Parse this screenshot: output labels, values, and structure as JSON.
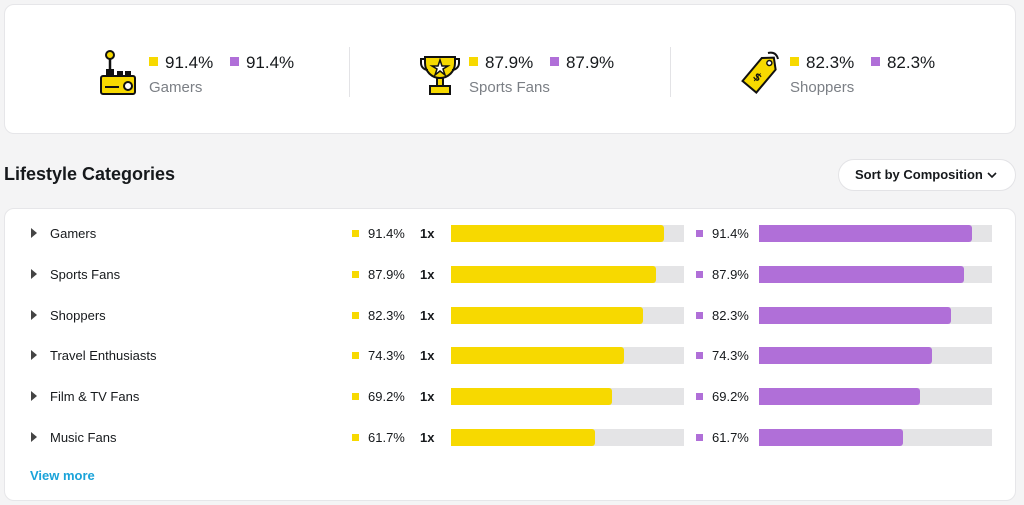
{
  "colors": {
    "primary": "#f7d900",
    "secondary": "#b06fd8",
    "link": "#1aa3d9"
  },
  "summary": [
    {
      "icon": "joystick-icon",
      "primary": "91.4%",
      "secondary": "91.4%",
      "label": "Gamers"
    },
    {
      "icon": "trophy-icon",
      "primary": "87.9%",
      "secondary": "87.9%",
      "label": "Sports Fans"
    },
    {
      "icon": "price-tag-icon",
      "primary": "82.3%",
      "secondary": "82.3%",
      "label": "Shoppers"
    }
  ],
  "section": {
    "title": "Lifestyle Categories",
    "sort_label": "Sort by Composition"
  },
  "rows": [
    {
      "name": "Gamers",
      "primary_pct": "91.4%",
      "index": "1x",
      "secondary_pct": "91.4%",
      "primary_value": 91.4,
      "secondary_value": 91.4
    },
    {
      "name": "Sports Fans",
      "primary_pct": "87.9%",
      "index": "1x",
      "secondary_pct": "87.9%",
      "primary_value": 87.9,
      "secondary_value": 87.9
    },
    {
      "name": "Shoppers",
      "primary_pct": "82.3%",
      "index": "1x",
      "secondary_pct": "82.3%",
      "primary_value": 82.3,
      "secondary_value": 82.3
    },
    {
      "name": "Travel Enthusiasts",
      "primary_pct": "74.3%",
      "index": "1x",
      "secondary_pct": "74.3%",
      "primary_value": 74.3,
      "secondary_value": 74.3
    },
    {
      "name": "Film & TV Fans",
      "primary_pct": "69.2%",
      "index": "1x",
      "secondary_pct": "69.2%",
      "primary_value": 69.2,
      "secondary_value": 69.2
    },
    {
      "name": "Music Fans",
      "primary_pct": "61.7%",
      "index": "1x",
      "secondary_pct": "61.7%",
      "primary_value": 61.7,
      "secondary_value": 61.7
    }
  ],
  "view_more_label": "View more"
}
